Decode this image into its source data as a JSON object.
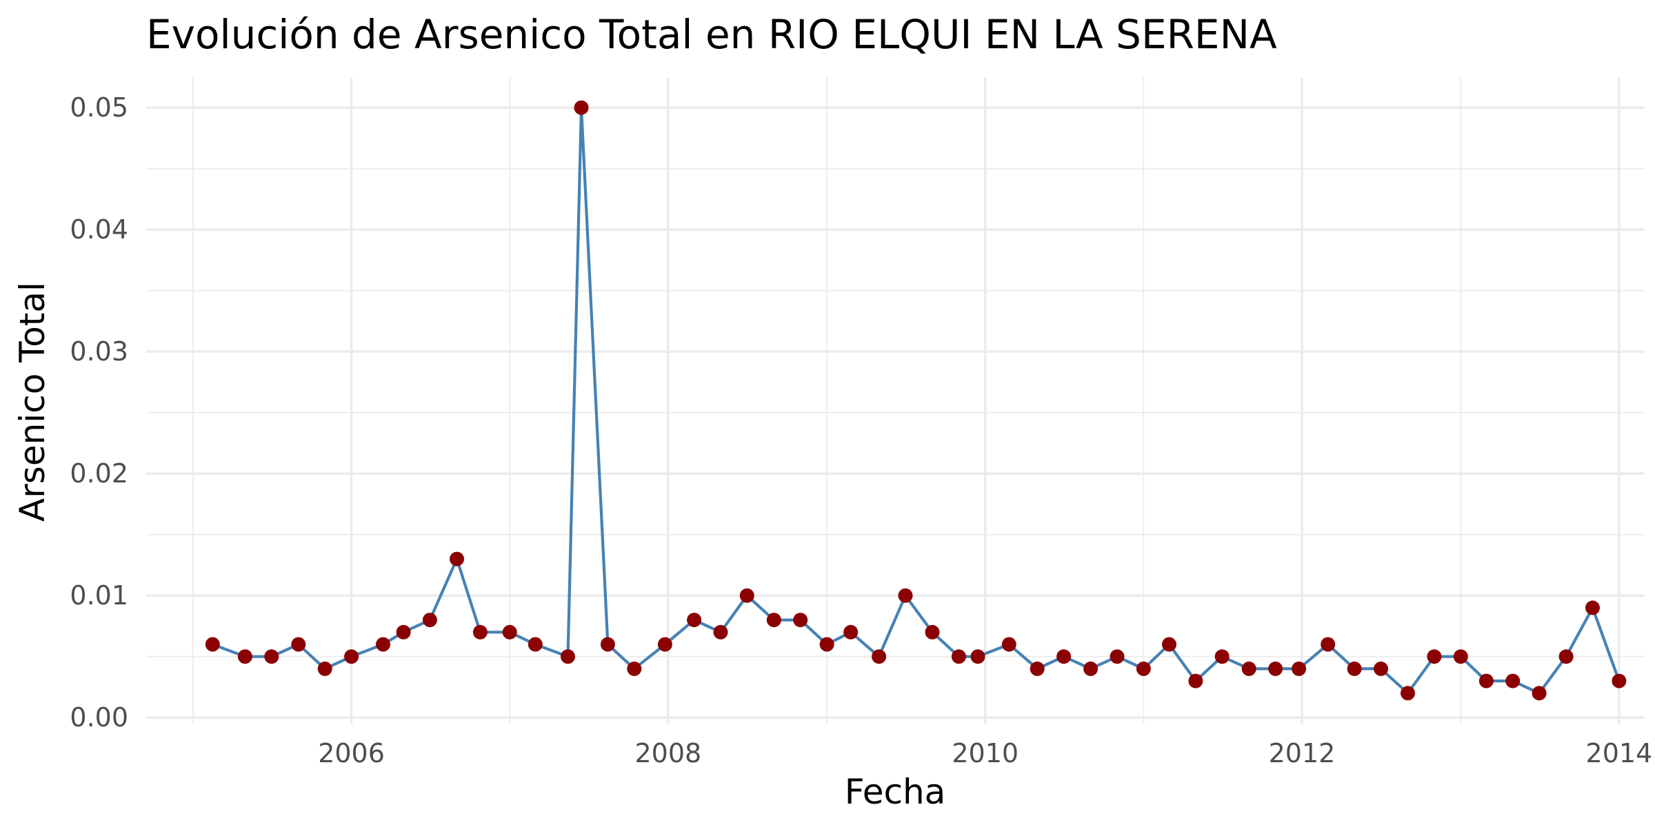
{
  "chart_data": {
    "type": "line",
    "title": "Evolución de Arsenico Total en RIO ELQUI EN LA SERENA",
    "xlabel": "Fecha",
    "ylabel": "Arsenico Total",
    "x_ticks": [
      "2006",
      "2008",
      "2010",
      "2012",
      "2014"
    ],
    "y_ticks": [
      "0.00",
      "0.01",
      "0.02",
      "0.03",
      "0.04",
      "0.05"
    ],
    "xlim": [
      "2004-09-15",
      "2014-03-01"
    ],
    "ylim": [
      -0.0005,
      0.0525
    ],
    "grid": true,
    "line_color": "#4682b4",
    "point_color": "#8b0000",
    "series": [
      {
        "x": [
          "2005-02-15",
          "2005-05-01",
          "2005-07-01",
          "2005-09-01",
          "2005-11-01",
          "2006-01-01",
          "2006-03-15",
          "2006-05-01",
          "2006-07-01",
          "2006-09-01",
          "2006-10-25",
          "2007-01-01",
          "2007-03-01",
          "2007-05-15",
          "2007-06-15",
          "2007-08-15",
          "2007-10-15",
          "2007-12-25",
          "2008-03-01",
          "2008-05-01",
          "2008-07-01",
          "2008-09-01",
          "2008-11-01",
          "2009-01-01",
          "2009-02-25",
          "2009-05-01",
          "2009-07-01",
          "2009-09-01",
          "2009-11-01",
          "2009-12-15",
          "2010-02-25",
          "2010-05-01",
          "2010-07-01",
          "2010-09-01",
          "2010-11-01",
          "2011-01-01",
          "2011-03-01",
          "2011-05-01",
          "2011-07-01",
          "2011-09-01",
          "2011-11-01",
          "2011-12-25",
          "2012-03-01",
          "2012-05-01",
          "2012-07-01",
          "2012-09-01",
          "2012-11-01",
          "2013-01-01",
          "2013-03-01",
          "2013-05-01",
          "2013-07-01",
          "2013-09-01",
          "2013-11-01",
          "2014-01-01"
        ],
        "values": [
          0.006,
          0.005,
          0.005,
          0.006,
          0.004,
          0.005,
          0.006,
          0.007,
          0.008,
          0.013,
          0.007,
          0.007,
          0.006,
          0.005,
          0.05,
          0.006,
          0.004,
          0.006,
          0.008,
          0.007,
          0.01,
          0.008,
          0.008,
          0.006,
          0.007,
          0.005,
          0.01,
          0.007,
          0.005,
          0.005,
          0.006,
          0.004,
          0.005,
          0.004,
          0.005,
          0.004,
          0.006,
          0.003,
          0.005,
          0.004,
          0.004,
          0.004,
          0.006,
          0.004,
          0.004,
          0.002,
          0.005,
          0.005,
          0.003,
          0.003,
          0.002,
          0.005,
          0.009,
          0.003
        ]
      }
    ]
  }
}
